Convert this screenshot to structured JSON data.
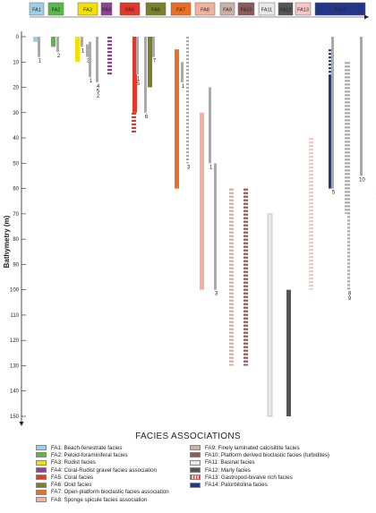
{
  "y_axis": {
    "label": "Bathymetry (m)",
    "ticks": [
      "0",
      "10",
      "20",
      "30",
      "40",
      "50",
      "60",
      "70",
      "80",
      "90",
      "100",
      "110",
      "120",
      "130",
      "140",
      "150"
    ]
  },
  "header_boxes": [
    {
      "label": "FA1",
      "color": "#9ecfe6",
      "text": "#ffffff"
    },
    {
      "label": "FA2",
      "color": "#5ab847",
      "text": "#ffffff"
    },
    {
      "label": "FA3",
      "color": "#f2e200",
      "text": "#333333"
    },
    {
      "label": "FA4",
      "color": "#8e4197",
      "text": "#ffffff"
    },
    {
      "label": "FA5",
      "color": "#e5372a",
      "text": "#ffffff"
    },
    {
      "label": "FA6",
      "color": "#7a7f2b",
      "text": "#ffffff"
    },
    {
      "label": "FA7",
      "color": "#ea6f24",
      "text": "#ffffff"
    },
    {
      "label": "FA8",
      "color": "#f3b2a0",
      "text": "#ffffff"
    },
    {
      "label": "FA9",
      "color": "#c8b2a6",
      "text": "#ffffff"
    },
    {
      "label": "FA10",
      "color": "#8d5b5a",
      "text": "#ffffff"
    },
    {
      "label": "FA11",
      "color": "#e9e9e9",
      "text": "#555555"
    },
    {
      "label": "FA12",
      "color": "#555555",
      "text": "#ffffff"
    },
    {
      "label": "FA13",
      "color": "#f6c7c3",
      "text": "#ffffff"
    },
    {
      "label": "FA14",
      "color": "#253688",
      "text": "#ffffff"
    }
  ],
  "legend": {
    "title": "FACIES ASSOCIATIONS",
    "left": [
      {
        "label": "FA1: Beach-fenestrate facies",
        "color": "#9ecfe6"
      },
      {
        "label": "FA2: Peloid-foraminiferal facies",
        "color": "#5ab847"
      },
      {
        "label": "FA3: Rudist facies",
        "color": "#f2e200"
      },
      {
        "label": "FA4: Coral-Rudist gravel facies association",
        "color": "#8e4197"
      },
      {
        "label": "FA5: Coral facies",
        "color": "#e5372a"
      },
      {
        "label": "FA6: Ooid facies",
        "color": "#7a7f2b"
      },
      {
        "label": "FA7: Open-platform bioclastic facies association",
        "color": "#ea6f24"
      },
      {
        "label": "FA8: Sponge spicule facies association",
        "color": "#f3b2a0"
      }
    ],
    "right": [
      {
        "label": "FA9: Finely laminated calcisiltite facies",
        "color": "#c8b2a6"
      },
      {
        "label": "FA10: Platform derived bioclastic facies (turbidites)",
        "color": "#8d5b5a"
      },
      {
        "label": "FA11: Basinal facies",
        "color": "#e9e9e9"
      },
      {
        "label": "FA12: Marly facies",
        "color": "#555555"
      },
      {
        "label": "FA13: Gastropod-bivalve rich facies",
        "color": "#f6c7c3",
        "dotted": true
      },
      {
        "label": "FA14: Palorbitolina facies",
        "color": "#253688"
      }
    ]
  },
  "bars": [
    {
      "fa": "FA1",
      "color": "#9ecfe6",
      "from": 0,
      "to": 2
    },
    {
      "fa": "FA1",
      "color": "#aaaaaa",
      "from": 0,
      "to": 8,
      "note": "1"
    },
    {
      "fa": "FA2",
      "color": "#5ab847",
      "from": 0,
      "to": 4
    },
    {
      "fa": "FA2",
      "color": "#aaaaaa",
      "from": 0,
      "to": 6,
      "note": "2"
    },
    {
      "fa": "FA3",
      "color": "#f2e200",
      "from": 0,
      "to": 10
    },
    {
      "fa": "FA3",
      "color": "#aaaaaa",
      "from": 0,
      "to": 4,
      "note": "1"
    },
    {
      "fa": "FA3",
      "color": "#aaaaaa",
      "from": 3,
      "to": 8,
      "note": "3"
    },
    {
      "fa": "FA4",
      "color": "#8e4197",
      "from": 0,
      "to": 15,
      "dashed": true
    },
    {
      "fa": "FA4",
      "color": "#aaaaaa",
      "from": 2,
      "to": 16,
      "note": "1"
    },
    {
      "fa": "FA4",
      "color": "#aaaaaa",
      "from": 0,
      "to": 18,
      "note": "4 5 2"
    },
    {
      "fa": "FA5",
      "color": "#e5372a",
      "from": 0,
      "to": 30
    },
    {
      "fa": "FA5",
      "color": "#e5372a",
      "from": 30,
      "to": 38,
      "dashed": true
    },
    {
      "fa": "FA5",
      "color": "#aaaaaa",
      "from": 0,
      "to": 15,
      "note": "1 5"
    },
    {
      "fa": "FA5",
      "color": "#aaaaaa",
      "from": 0,
      "to": 30,
      "note": "6"
    },
    {
      "fa": "FA6",
      "color": "#7a7f2b",
      "from": 0,
      "to": 20
    },
    {
      "fa": "FA6",
      "color": "#aaaaaa",
      "from": 0,
      "to": 8,
      "note": "7"
    },
    {
      "fa": "FA7",
      "color": "#ea6f24",
      "from": 5,
      "to": 60
    },
    {
      "fa": "FA7",
      "color": "#aaaaaa",
      "from": 10,
      "to": 18,
      "note": "1"
    },
    {
      "fa": "FA7",
      "color": "#aaaaaa",
      "from": 0,
      "to": 50,
      "dashed": true,
      "note": "3"
    },
    {
      "fa": "FA8",
      "color": "#f3b2a0",
      "from": 30,
      "to": 100
    },
    {
      "fa": "FA8",
      "color": "#aaaaaa",
      "from": 20,
      "to": 50,
      "note": "1"
    },
    {
      "fa": "FA8",
      "color": "#aaaaaa",
      "from": 50,
      "to": 100,
      "note": "3"
    },
    {
      "fa": "FA9",
      "color": "#c8b2a6",
      "from": 60,
      "to": 130,
      "dashed": true
    },
    {
      "fa": "FA10",
      "color": "#8d5b5a",
      "from": 60,
      "to": 130,
      "dashed": true
    },
    {
      "fa": "FA11",
      "color": "#e9e9e9",
      "from": 70,
      "to": 150
    },
    {
      "fa": "FA12",
      "color": "#555555",
      "from": 100,
      "to": 150
    },
    {
      "fa": "FA13",
      "color": "#f6c7c3",
      "from": 40,
      "to": 100,
      "dashed": true
    },
    {
      "fa": "FA14",
      "color": "#253688",
      "from": 15,
      "to": 60
    },
    {
      "fa": "FA14",
      "color": "#253688",
      "from": 5,
      "to": 15,
      "dashed": true
    },
    {
      "fa": "FA14",
      "color": "#aaaaaa",
      "from": 0,
      "to": 60,
      "note": "5"
    },
    {
      "fa": "FA14",
      "color": "#aaaaaa",
      "from": 10,
      "to": 70,
      "dashed": true
    },
    {
      "fa": "FA14",
      "color": "#aaaaaa",
      "from": 10,
      "to": 100,
      "dashed": true,
      "note": "8 9"
    },
    {
      "fa": "FA14",
      "color": "#aaaaaa",
      "from": 0,
      "to": 55,
      "note": "10"
    },
    {
      "fa": "FA14",
      "color": "#aaaaaa",
      "from": 25,
      "to": 60,
      "note": "11"
    }
  ]
}
